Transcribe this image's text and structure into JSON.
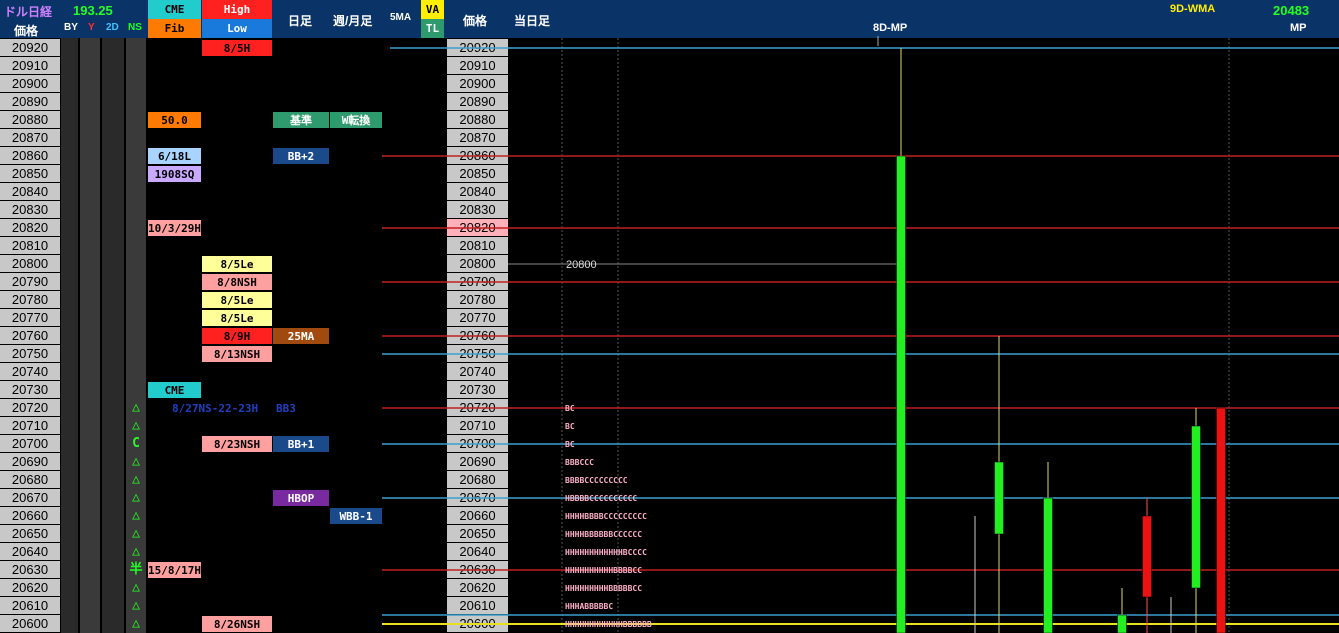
{
  "header": {
    "title": "ドル日経",
    "usd_value": "193.25",
    "price_label": "価格",
    "by": "BY",
    "y": "Y",
    "d2": "2D",
    "ns": "NS",
    "cme": "CME",
    "fib": "Fib",
    "high": "High",
    "low": "Low",
    "daily": "日足",
    "weekly_monthly": "週/月足",
    "ma5": "5MA",
    "va": "VA",
    "tl": "TL",
    "price_label2": "価格",
    "today": "当日足",
    "wma": "9D-WMA",
    "wma_value": "20483",
    "mp": "MP",
    "mp8d": "8D-MP"
  },
  "colors": {
    "header_bg": "#0a3468",
    "price_bg": "#c8c8c8",
    "bull": "#22ee22",
    "bear": "#ee1111"
  },
  "chart_data": {
    "type": "table",
    "price_levels": [
      20920,
      20910,
      20900,
      20890,
      20880,
      20870,
      20860,
      20850,
      20840,
      20830,
      20820,
      20810,
      20800,
      20790,
      20780,
      20770,
      20760,
      20750,
      20740,
      20730,
      20720,
      20710,
      20700,
      20690,
      20680,
      20670,
      20660,
      20650,
      20640,
      20630,
      20620,
      20610,
      20600
    ],
    "ns_marks": [
      {
        "price": 20720,
        "mark": "△"
      },
      {
        "price": 20710,
        "mark": "△"
      },
      {
        "price": 20700,
        "mark": "C"
      },
      {
        "price": 20690,
        "mark": "△"
      },
      {
        "price": 20680,
        "mark": "△"
      },
      {
        "price": 20670,
        "mark": "△"
      },
      {
        "price": 20660,
        "mark": "△"
      },
      {
        "price": 20650,
        "mark": "△"
      },
      {
        "price": 20640,
        "mark": "△"
      },
      {
        "price": 20630,
        "mark": "半"
      },
      {
        "price": 20620,
        "mark": "△"
      },
      {
        "price": 20610,
        "mark": "△"
      },
      {
        "price": 20600,
        "mark": "△"
      }
    ],
    "cme_fib": [
      {
        "price": 20880,
        "label": "50.0",
        "bg": "#ff7a00",
        "fg": "#000"
      },
      {
        "price": 20860,
        "label": "6/18L",
        "bg": "#a8d4ff",
        "fg": "#000"
      },
      {
        "price": 20850,
        "label": "1908SQ",
        "bg": "#c9a8ff",
        "fg": "#000"
      },
      {
        "price": 20820,
        "label": "10/3/29H",
        "bg": "#ffa0a0",
        "fg": "#000"
      },
      {
        "price": 20730,
        "label": "CME",
        "bg": "#22cccc",
        "fg": "#000"
      },
      {
        "price": 20630,
        "label": "15/8/17H",
        "bg": "#ffa0a0",
        "fg": "#000"
      }
    ],
    "high_low": [
      {
        "price": 20920,
        "label": "8/5H",
        "bg": "#ff2020",
        "fg": "#000"
      },
      {
        "price": 20800,
        "label": "8/5Le",
        "bg": "#ffff99",
        "fg": "#000"
      },
      {
        "price": 20790,
        "label": "8/8NSH",
        "bg": "#ffa0a0",
        "fg": "#000"
      },
      {
        "price": 20780,
        "label": "8/5Le",
        "bg": "#ffff99",
        "fg": "#000"
      },
      {
        "price": 20770,
        "label": "8/5Le",
        "bg": "#ffff99",
        "fg": "#000"
      },
      {
        "price": 20760,
        "label": "8/9H",
        "bg": "#ff2020",
        "fg": "#000"
      },
      {
        "price": 20750,
        "label": "8/13NSH",
        "bg": "#ffa0a0",
        "fg": "#000"
      },
      {
        "price": 20700,
        "label": "8/23NSH",
        "bg": "#ffa0a0",
        "fg": "#000"
      },
      {
        "price": 20600,
        "label": "8/26NSH",
        "bg": "#ffa0a0",
        "fg": "#000"
      }
    ],
    "overflow_label": {
      "price": 20720,
      "label": "8/27NS-22-23H",
      "fg": "#2040c0"
    },
    "overflow_label2": {
      "price": 20720,
      "label": "BB3",
      "fg": "#2040c0"
    },
    "daily": [
      {
        "price": 20880,
        "label": "基準",
        "bg": "#2e9a6e",
        "fg": "#fff"
      },
      {
        "price": 20860,
        "label": "BB+2",
        "bg": "#1a4a8a",
        "fg": "#fff"
      },
      {
        "price": 20760,
        "label": "25MA",
        "bg": "#a04a10",
        "fg": "#fff"
      },
      {
        "price": 20700,
        "label": "BB+1",
        "bg": "#1a4a8a",
        "fg": "#fff"
      },
      {
        "price": 20670,
        "label": "HBOP",
        "bg": "#7a2aa0",
        "fg": "#fff"
      }
    ],
    "weekly": [
      {
        "price": 20880,
        "label": "W転換",
        "bg": "#2e9a6e",
        "fg": "#fff"
      },
      {
        "price": 20660,
        "label": "WBB-1",
        "bg": "#1a4a8a",
        "fg": "#fff"
      }
    ],
    "highlight_right": [
      20820
    ],
    "hlines": [
      {
        "price": 20920,
        "color": "#3aa0d0"
      },
      {
        "price": 20860,
        "color": "#c02020"
      },
      {
        "price": 20820,
        "color": "#c02020"
      },
      {
        "price": 20790,
        "color": "#c02020"
      },
      {
        "price": 20760,
        "color": "#c02020"
      },
      {
        "price": 20750,
        "color": "#3aa0d0"
      },
      {
        "price": 20720,
        "color": "#c02020"
      },
      {
        "price": 20700,
        "color": "#3aa0d0"
      },
      {
        "price": 20670,
        "color": "#3aa0d0"
      },
      {
        "price": 20630,
        "color": "#c02020"
      },
      {
        "price": 20605,
        "color": "#3aa0d0"
      },
      {
        "price": 20600,
        "color": "#e8e020"
      }
    ],
    "annotation_20800": {
      "price": 20800,
      "label": "20800"
    },
    "profile": [
      {
        "price": 20720,
        "text": "BC"
      },
      {
        "price": 20710,
        "text": "BC"
      },
      {
        "price": 20700,
        "text": "BC"
      },
      {
        "price": 20690,
        "text": "BBBCCC"
      },
      {
        "price": 20680,
        "text": "BBBBCCCCCCCCC"
      },
      {
        "price": 20670,
        "text": "HBBBBCCCCCCCCCC"
      },
      {
        "price": 20660,
        "text": "HHHHBBBBCCCCCCCCC"
      },
      {
        "price": 20650,
        "text": "HHHHBBBBBBCCCCCC"
      },
      {
        "price": 20640,
        "text": "HHHHHHHHHHHHBCCCC"
      },
      {
        "price": 20630,
        "text": "HHHHHHHHHHBBBBCC"
      },
      {
        "price": 20620,
        "text": "HHHHHHHHHBBBBBCC"
      },
      {
        "price": 20610,
        "text": "HHHABBBBBC"
      },
      {
        "price": 20600,
        "text": "HHHHHHHHHHHHBBBBBB"
      }
    ],
    "candles": [
      {
        "x": 901,
        "high": 20920,
        "low": 20600,
        "open": 20600,
        "close": 20860,
        "color": "bull"
      },
      {
        "x": 975,
        "high": 20660,
        "low": 20600,
        "open": 20600,
        "close": 20600,
        "color": "wick"
      },
      {
        "x": 999,
        "high": 20760,
        "low": 20600,
        "open": 20650,
        "close": 20690,
        "color": "bull"
      },
      {
        "x": 1048,
        "high": 20690,
        "low": 20600,
        "open": 20600,
        "close": 20670,
        "color": "bull"
      },
      {
        "x": 1122,
        "high": 20620,
        "low": 20600,
        "open": 20600,
        "close": 20605,
        "color": "bull"
      },
      {
        "x": 1147,
        "high": 20670,
        "low": 20600,
        "open": 20660,
        "close": 20615,
        "color": "bear"
      },
      {
        "x": 1171,
        "high": 20615,
        "low": 20600,
        "open": 20600,
        "close": 20600,
        "color": "wick"
      },
      {
        "x": 1196,
        "high": 20720,
        "low": 20600,
        "open": 20620,
        "close": 20710,
        "color": "bull"
      },
      {
        "x": 1221,
        "high": 20720,
        "low": 20600,
        "open": 20720,
        "close": 20600,
        "color": "bear"
      }
    ]
  }
}
